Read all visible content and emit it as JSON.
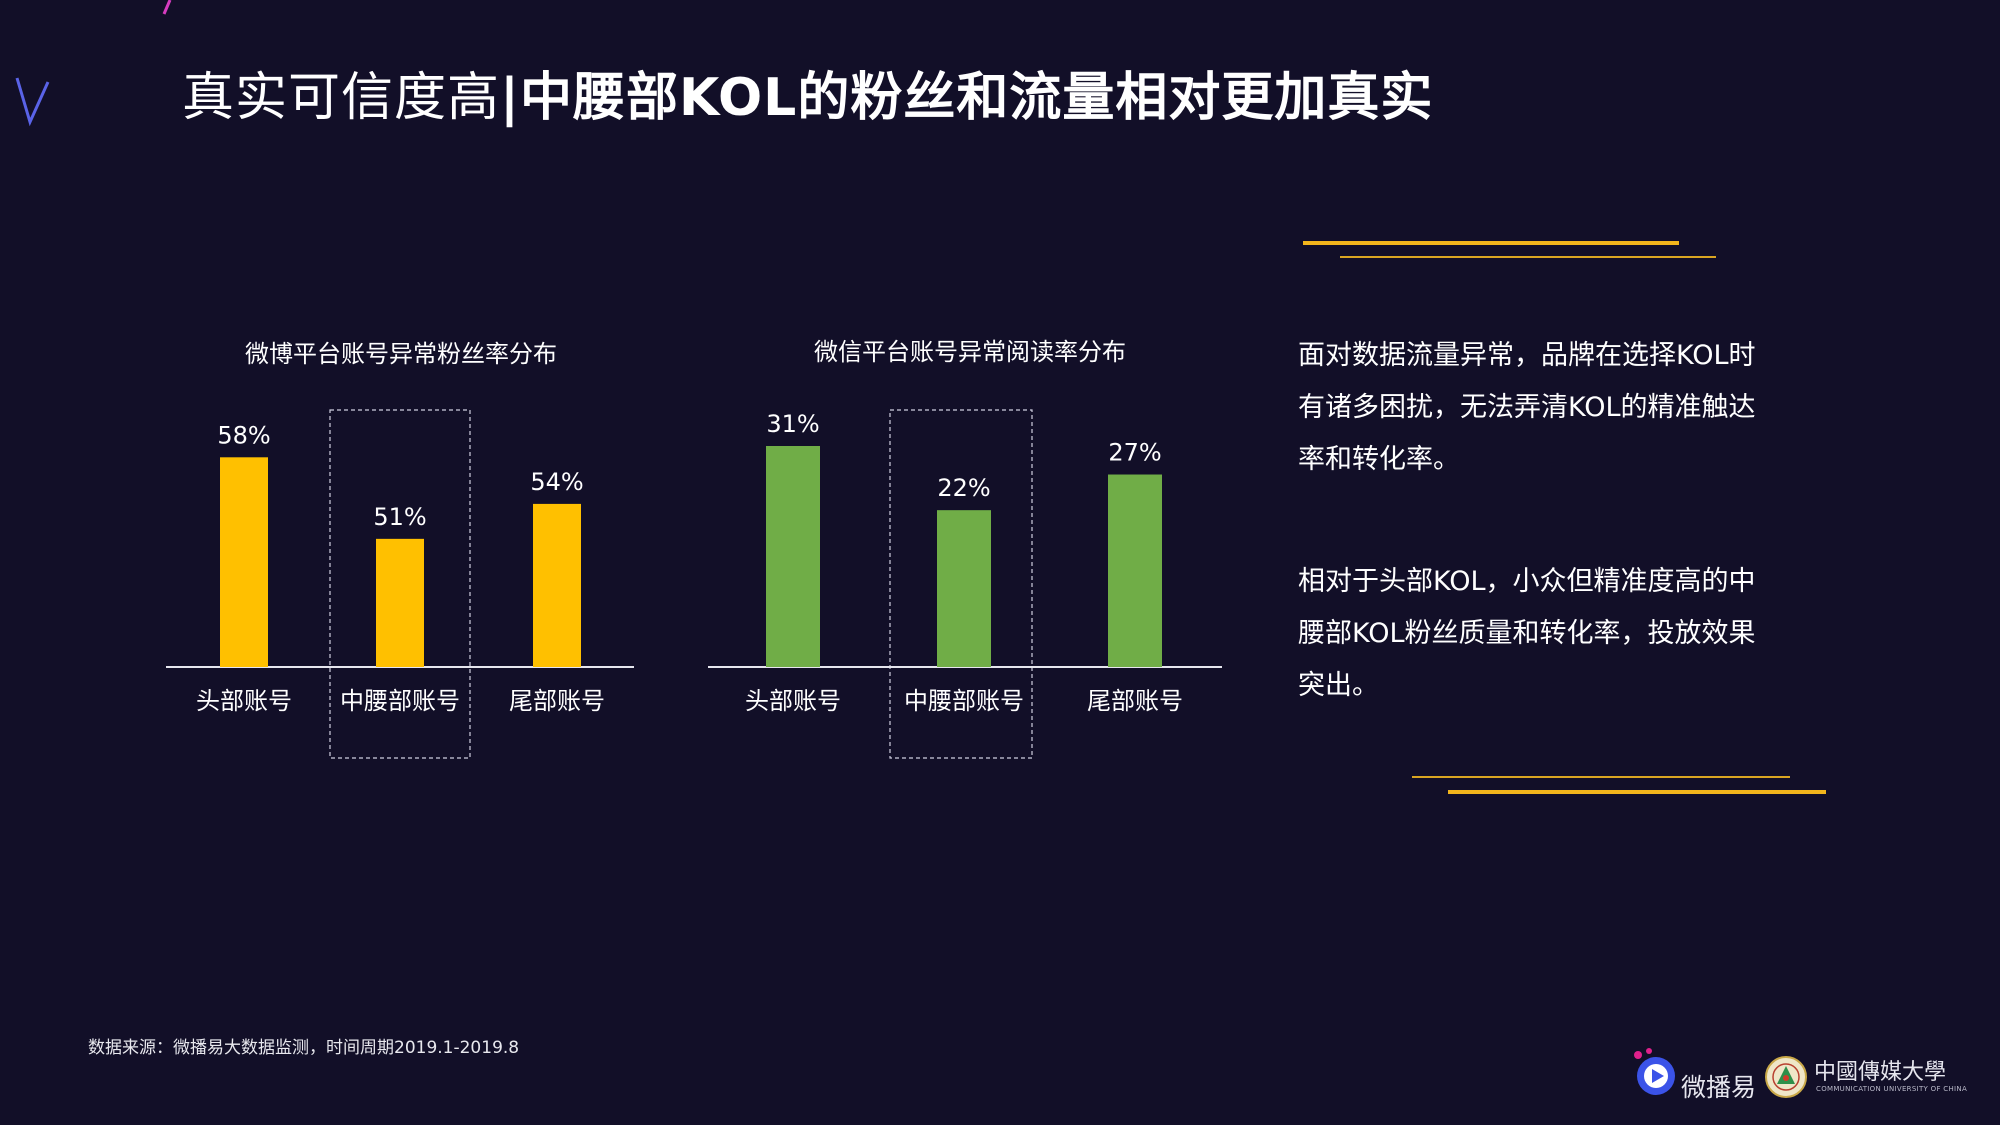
{
  "slide": {
    "title_light": "真实可信度高",
    "title_sep": "|",
    "title_bold": "中腰部KOL的粉丝和流量相对更加真实"
  },
  "colors": {
    "background": "#120f28",
    "weibo_bar": "#ffc000",
    "wechat_bar": "#70ad47",
    "accent_gold": "#f2b51c"
  },
  "chart_data": [
    {
      "type": "bar",
      "title": "微博平台账号异常粉丝率分布",
      "categories": [
        "头部账号",
        "中腰部账号",
        "尾部账号"
      ],
      "values": [
        58,
        51,
        54
      ],
      "value_labels": [
        "58%",
        "51%",
        "54%"
      ],
      "highlight_category": "中腰部账号",
      "color": "#ffc000",
      "ylim": [
        40,
        60
      ],
      "grid": false,
      "legend": "none"
    },
    {
      "type": "bar",
      "title": "微信平台账号异常阅读率分布",
      "categories": [
        "头部账号",
        "中腰部账号",
        "尾部账号"
      ],
      "values": [
        31,
        22,
        27
      ],
      "value_labels": [
        "31%",
        "22%",
        "27%"
      ],
      "highlight_category": "中腰部账号",
      "color": "#70ad47",
      "ylim": [
        0,
        31
      ],
      "grid": false,
      "legend": "none"
    }
  ],
  "side_text": {
    "para1_lines": [
      "面对数据流量异常，品牌在选择KOL时",
      "有诸多困扰，无法弄清KOL的精准触达",
      "率和转化率。"
    ],
    "para2_lines": [
      "相对于头部KOL，小众但精准度高的中",
      "腰部KOL粉丝质量和转化率，投放效果",
      "突出。"
    ]
  },
  "footer": {
    "source": "数据来源：微播易大数据监测，时间周期2019.1-2019.8",
    "logo_weiboyi": "微播易",
    "logo_cuc": "中國傳媒大學",
    "logo_cuc_sub": "COMMUNICATION UNIVERSITY OF CHINA"
  }
}
